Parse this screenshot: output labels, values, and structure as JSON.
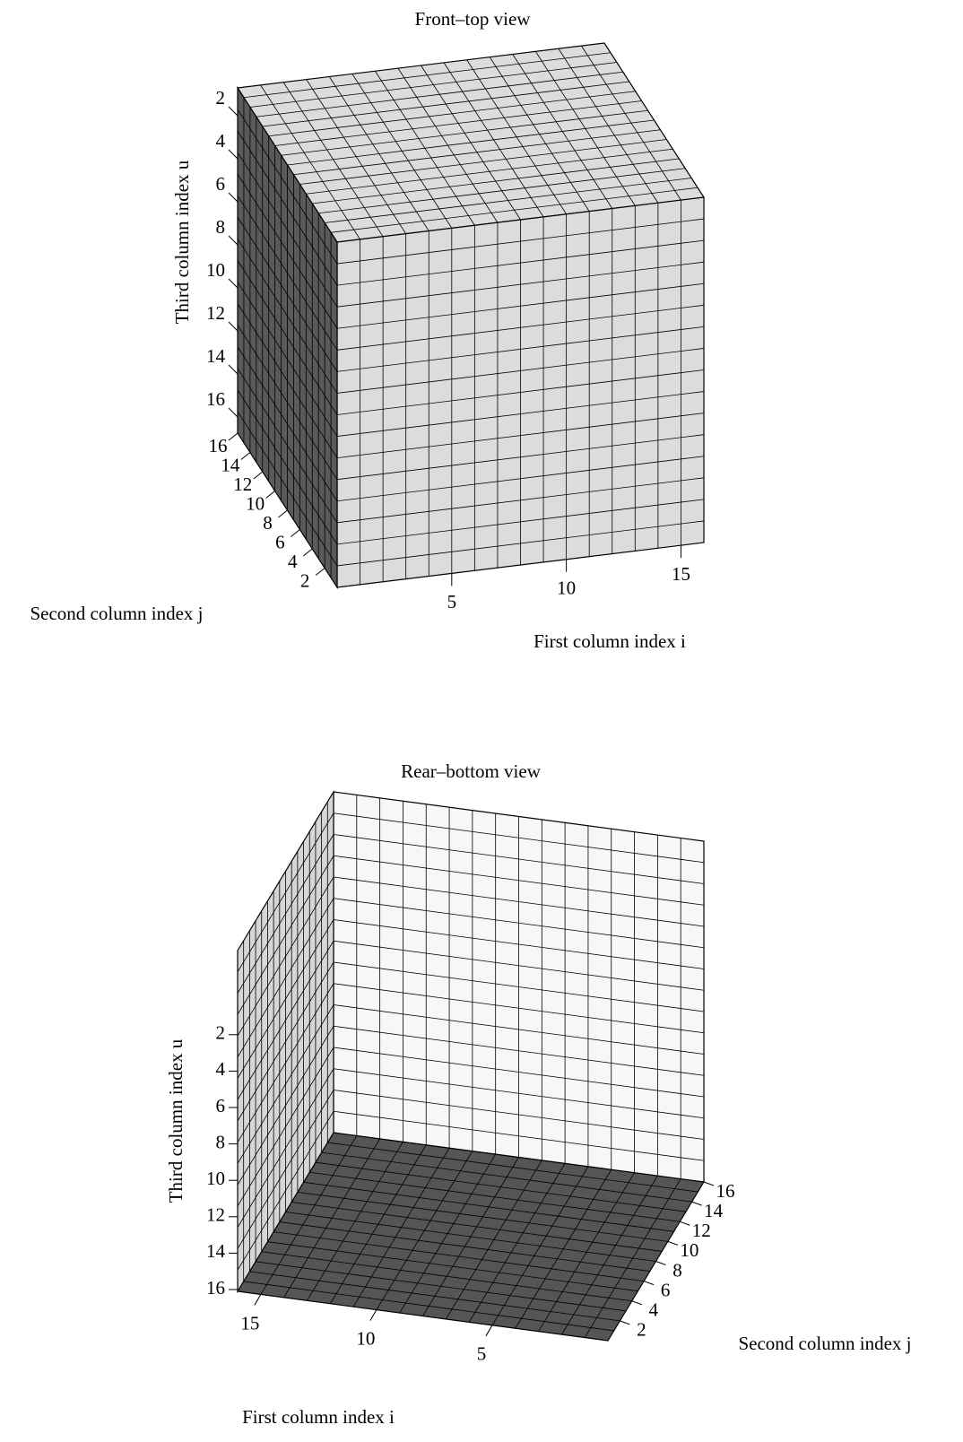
{
  "chart_data": [
    {
      "type": "voxel",
      "title": "Front–top view",
      "xlabel": "First column index i",
      "ylabel": "Second column index j",
      "zlabel": "Third column index u",
      "xlim": [
        0,
        16
      ],
      "ylim": [
        0,
        16
      ],
      "zlim": [
        0,
        16
      ],
      "xticks": [
        5,
        10,
        15
      ],
      "yticks": [
        2,
        4,
        6,
        8,
        10,
        12,
        14,
        16
      ],
      "zticks": [
        2,
        4,
        6,
        8,
        10,
        12,
        14,
        16
      ]
    },
    {
      "type": "voxel",
      "title": "Rear–bottom view",
      "xlabel": "First column index i",
      "ylabel": "Second column index j",
      "zlabel": "Third column index u",
      "xlim": [
        0,
        16
      ],
      "ylim": [
        0,
        16
      ],
      "zlim": [
        0,
        16
      ],
      "xticks": [
        5,
        10,
        15
      ],
      "yticks": [
        2,
        4,
        6,
        8,
        10,
        12,
        14,
        16
      ],
      "zticks": [
        2,
        4,
        6,
        8,
        10,
        12,
        14,
        16
      ]
    }
  ]
}
